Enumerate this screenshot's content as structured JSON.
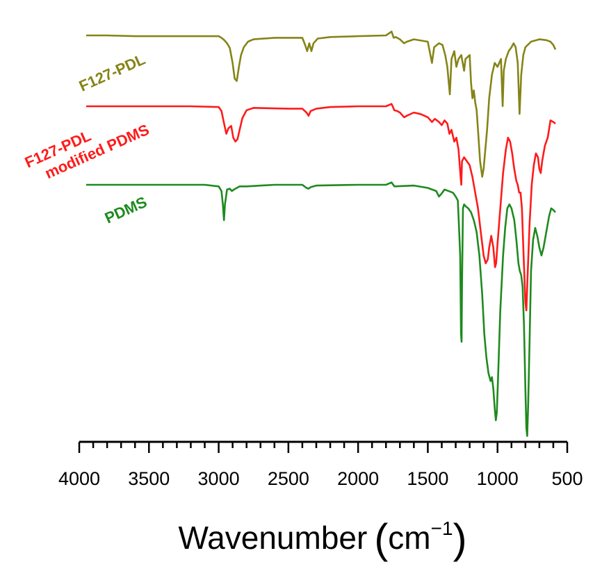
{
  "chart_data": {
    "type": "line",
    "title": "",
    "xlabel": "Wavenumber",
    "xunit_base": "cm",
    "xunit_exp": "−1",
    "ylabel": "",
    "xlim": [
      4000,
      500
    ],
    "x_reversed": true,
    "grid": false,
    "xticks_major": [
      4000,
      3500,
      3000,
      2500,
      2000,
      1500,
      1000,
      500
    ],
    "xticks_minor_step": 100,
    "series": [
      {
        "name": "F127-PDL",
        "color": "#858417",
        "points": [
          [
            3950,
            0
          ],
          [
            3800,
            0
          ],
          [
            3600,
            0.1
          ],
          [
            3400,
            0.1
          ],
          [
            3200,
            0.1
          ],
          [
            3000,
            0.1
          ],
          [
            2980,
            0.3
          ],
          [
            2960,
            0.6
          ],
          [
            2940,
            1.0
          ],
          [
            2920,
            1.6
          ],
          [
            2900,
            3.5
          ],
          [
            2885,
            5.5
          ],
          [
            2870,
            5.8
          ],
          [
            2855,
            4.0
          ],
          [
            2840,
            2.5
          ],
          [
            2820,
            1.5
          ],
          [
            2790,
            0.8
          ],
          [
            2750,
            0.5
          ],
          [
            2600,
            0.3
          ],
          [
            2400,
            0.3
          ],
          [
            2380,
            1.2
          ],
          [
            2365,
            2.0
          ],
          [
            2350,
            1.0
          ],
          [
            2335,
            2.0
          ],
          [
            2320,
            1.0
          ],
          [
            2290,
            0.4
          ],
          [
            2200,
            0.2
          ],
          [
            2000,
            0.1
          ],
          [
            1800,
            0
          ],
          [
            1760,
            -0.5
          ],
          [
            1745,
            0.3
          ],
          [
            1730,
            0.2
          ],
          [
            1700,
            0.5
          ],
          [
            1670,
            1.0
          ],
          [
            1650,
            0.8
          ],
          [
            1600,
            0.5
          ],
          [
            1500,
            0.8
          ],
          [
            1470,
            3.5
          ],
          [
            1455,
            1.5
          ],
          [
            1420,
            1.0
          ],
          [
            1395,
            1.2
          ],
          [
            1375,
            2.5
          ],
          [
            1360,
            4.0
          ],
          [
            1342,
            7.5
          ],
          [
            1330,
            3.0
          ],
          [
            1310,
            2.0
          ],
          [
            1295,
            4.0
          ],
          [
            1280,
            3.0
          ],
          [
            1260,
            2.5
          ],
          [
            1240,
            4.5
          ],
          [
            1230,
            3.0
          ],
          [
            1200,
            2.5
          ],
          [
            1190,
            6.0
          ],
          [
            1180,
            8.0
          ],
          [
            1170,
            7.0
          ],
          [
            1160,
            8.5
          ],
          [
            1150,
            9.5
          ],
          [
            1140,
            12.0
          ],
          [
            1125,
            16.0
          ],
          [
            1110,
            18.0
          ],
          [
            1100,
            17.0
          ],
          [
            1090,
            15.0
          ],
          [
            1075,
            12.0
          ],
          [
            1060,
            8.0
          ],
          [
            1040,
            5.0
          ],
          [
            1020,
            3.5
          ],
          [
            1000,
            4.0
          ],
          [
            975,
            3.0
          ],
          [
            963,
            9.0
          ],
          [
            955,
            4.5
          ],
          [
            940,
            3.0
          ],
          [
            920,
            2.0
          ],
          [
            900,
            1.5
          ],
          [
            885,
            1.0
          ],
          [
            870,
            1.5
          ],
          [
            855,
            3.5
          ],
          [
            842,
            10.0
          ],
          [
            830,
            5.0
          ],
          [
            815,
            2.5
          ],
          [
            800,
            1.5
          ],
          [
            760,
            0.8
          ],
          [
            700,
            0.5
          ],
          [
            650,
            0.6
          ],
          [
            620,
            0.8
          ],
          [
            600,
            1.2
          ],
          [
            585,
            1.8
          ]
        ]
      },
      {
        "name": "F127-PDL\nmodified PDMS",
        "color": "#ff1a1a",
        "points": [
          [
            3950,
            0
          ],
          [
            3800,
            0
          ],
          [
            3600,
            0
          ],
          [
            3400,
            0
          ],
          [
            3200,
            0
          ],
          [
            3000,
            0.1
          ],
          [
            2980,
            0.6
          ],
          [
            2960,
            2.3
          ],
          [
            2945,
            3.5
          ],
          [
            2930,
            2.8
          ],
          [
            2910,
            2.5
          ],
          [
            2895,
            4.0
          ],
          [
            2880,
            4.5
          ],
          [
            2865,
            4.2
          ],
          [
            2850,
            3.0
          ],
          [
            2830,
            1.5
          ],
          [
            2800,
            0.5
          ],
          [
            2750,
            0.2
          ],
          [
            2500,
            0.3
          ],
          [
            2400,
            0.3
          ],
          [
            2370,
            0.8
          ],
          [
            2355,
            1.2
          ],
          [
            2340,
            0.6
          ],
          [
            2300,
            0.3
          ],
          [
            2200,
            0.1
          ],
          [
            2000,
            0
          ],
          [
            1800,
            0
          ],
          [
            1760,
            -0.3
          ],
          [
            1740,
            0.5
          ],
          [
            1720,
            0.6
          ],
          [
            1700,
            0.8
          ],
          [
            1670,
            1.4
          ],
          [
            1650,
            1.2
          ],
          [
            1600,
            0.8
          ],
          [
            1550,
            1.0
          ],
          [
            1500,
            1.4
          ],
          [
            1470,
            2.0
          ],
          [
            1450,
            1.6
          ],
          [
            1420,
            2.0
          ],
          [
            1400,
            2.4
          ],
          [
            1380,
            1.8
          ],
          [
            1360,
            2.2
          ],
          [
            1345,
            3.5
          ],
          [
            1330,
            3.0
          ],
          [
            1310,
            4.5
          ],
          [
            1295,
            4.0
          ],
          [
            1280,
            5.5
          ],
          [
            1265,
            9.0
          ],
          [
            1260,
            10.0
          ],
          [
            1255,
            7.0
          ],
          [
            1240,
            6.5
          ],
          [
            1220,
            7.0
          ],
          [
            1200,
            7.5
          ],
          [
            1180,
            9.0
          ],
          [
            1160,
            11.0
          ],
          [
            1140,
            13.0
          ],
          [
            1120,
            16.0
          ],
          [
            1100,
            19.0
          ],
          [
            1085,
            20.0
          ],
          [
            1070,
            19.5
          ],
          [
            1060,
            18.0
          ],
          [
            1045,
            16.5
          ],
          [
            1030,
            18.0
          ],
          [
            1018,
            20.5
          ],
          [
            1010,
            20.0
          ],
          [
            1000,
            17.5
          ],
          [
            980,
            13.0
          ],
          [
            960,
            8.5
          ],
          [
            940,
            5.5
          ],
          [
            925,
            4.0
          ],
          [
            910,
            4.5
          ],
          [
            895,
            6.0
          ],
          [
            880,
            8.0
          ],
          [
            865,
            9.5
          ],
          [
            855,
            10.0
          ],
          [
            845,
            11.0
          ],
          [
            835,
            11.0
          ],
          [
            825,
            13.0
          ],
          [
            815,
            18.0
          ],
          [
            800,
            25.0
          ],
          [
            793,
            26.0
          ],
          [
            785,
            22.0
          ],
          [
            770,
            15.0
          ],
          [
            755,
            10.0
          ],
          [
            740,
            7.5
          ],
          [
            725,
            6.0
          ],
          [
            710,
            6.5
          ],
          [
            700,
            8.0
          ],
          [
            690,
            8.5
          ],
          [
            680,
            7.0
          ],
          [
            660,
            5.0
          ],
          [
            640,
            4.0
          ],
          [
            620,
            1.8
          ],
          [
            600,
            2.0
          ],
          [
            585,
            2.2
          ]
        ]
      },
      {
        "name": "PDMS",
        "color": "#1e8a1e",
        "points": [
          [
            3950,
            0
          ],
          [
            3800,
            0
          ],
          [
            3600,
            0
          ],
          [
            3400,
            0
          ],
          [
            3200,
            0
          ],
          [
            3100,
            0
          ],
          [
            3000,
            0.2
          ],
          [
            2980,
            0.8
          ],
          [
            2970,
            2.5
          ],
          [
            2962,
            4.5
          ],
          [
            2955,
            2.5
          ],
          [
            2940,
            0.6
          ],
          [
            2920,
            0.5
          ],
          [
            2905,
            0.8
          ],
          [
            2890,
            0.6
          ],
          [
            2850,
            0.2
          ],
          [
            2800,
            0.2
          ],
          [
            2600,
            0
          ],
          [
            2400,
            0
          ],
          [
            2370,
            0.4
          ],
          [
            2355,
            0.5
          ],
          [
            2340,
            0.3
          ],
          [
            2300,
            0.1
          ],
          [
            2000,
            0
          ],
          [
            1800,
            0
          ],
          [
            1760,
            -0.3
          ],
          [
            1740,
            0.2
          ],
          [
            1600,
            0.1
          ],
          [
            1500,
            0.4
          ],
          [
            1440,
            0.8
          ],
          [
            1420,
            1.5
          ],
          [
            1405,
            1.2
          ],
          [
            1380,
            0.6
          ],
          [
            1320,
            1.0
          ],
          [
            1300,
            1.5
          ],
          [
            1285,
            2.0
          ],
          [
            1275,
            6.0
          ],
          [
            1268,
            9.0
          ],
          [
            1262,
            19.0
          ],
          [
            1258,
            20.0
          ],
          [
            1255,
            13.0
          ],
          [
            1248,
            3.0
          ],
          [
            1240,
            2.5
          ],
          [
            1225,
            2.8
          ],
          [
            1210,
            3.0
          ],
          [
            1190,
            3.5
          ],
          [
            1170,
            4.5
          ],
          [
            1150,
            6.0
          ],
          [
            1130,
            9.0
          ],
          [
            1110,
            14.0
          ],
          [
            1095,
            19.0
          ],
          [
            1080,
            22.0
          ],
          [
            1065,
            24.0
          ],
          [
            1050,
            25.0
          ],
          [
            1040,
            24.5
          ],
          [
            1030,
            26.0
          ],
          [
            1020,
            28.5
          ],
          [
            1012,
            30.0
          ],
          [
            1005,
            29.0
          ],
          [
            995,
            24.0
          ],
          [
            980,
            16.0
          ],
          [
            960,
            9.0
          ],
          [
            945,
            5.5
          ],
          [
            930,
            3.0
          ],
          [
            915,
            2.5
          ],
          [
            900,
            3.0
          ],
          [
            880,
            4.5
          ],
          [
            865,
            7.0
          ],
          [
            850,
            10.0
          ],
          [
            840,
            11.0
          ],
          [
            830,
            11.5
          ],
          [
            820,
            13.0
          ],
          [
            810,
            18.0
          ],
          [
            800,
            26.0
          ],
          [
            793,
            31.0
          ],
          [
            787,
            32.0
          ],
          [
            780,
            28.0
          ],
          [
            770,
            20.0
          ],
          [
            760,
            11.0
          ],
          [
            745,
            7.0
          ],
          [
            730,
            5.5
          ],
          [
            715,
            6.5
          ],
          [
            700,
            8.0
          ],
          [
            685,
            9.0
          ],
          [
            670,
            8.0
          ],
          [
            650,
            6.0
          ],
          [
            630,
            4.0
          ],
          [
            615,
            3.0
          ],
          [
            600,
            3.2
          ],
          [
            585,
            3.5
          ]
        ]
      }
    ]
  }
}
